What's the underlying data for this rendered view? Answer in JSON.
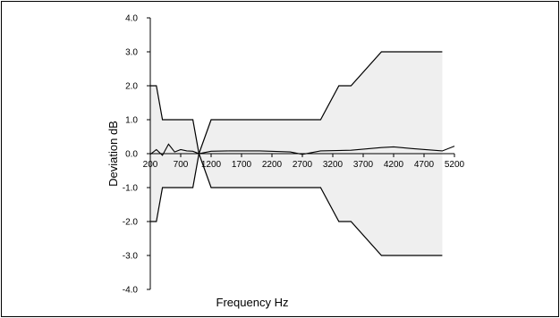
{
  "chart_data": {
    "type": "line",
    "title": "",
    "xlabel": "Frequency Hz",
    "ylabel": "Deviation dB",
    "xlim": [
      200,
      5200
    ],
    "ylim": [
      -4.0,
      4.0
    ],
    "x_ticks": [
      200,
      700,
      1200,
      1700,
      2200,
      2700,
      3200,
      3700,
      4200,
      4700,
      5200
    ],
    "x_tick_labels": [
      "200",
      "700",
      "1200",
      "1700",
      "2200",
      "2700",
      "3200",
      "3700",
      "4200",
      "4700",
      "5200"
    ],
    "y_ticks": [
      4.0,
      3.0,
      2.0,
      1.0,
      0.0,
      -1.0,
      -2.0,
      -3.0,
      -4.0
    ],
    "y_tick_labels": [
      "4.0",
      "3.0",
      "2.0",
      "1.0",
      "0.0",
      "-1.0",
      "-2.0",
      "-3.0",
      "-4.0"
    ],
    "grid": false,
    "colors": {
      "band_fill": "#efefef",
      "line": "#000000",
      "frame": "#000000"
    },
    "tolerance_band": {
      "upper": [
        [
          200,
          2.0
        ],
        [
          300,
          2.0
        ],
        [
          400,
          1.0
        ],
        [
          900,
          1.0
        ],
        [
          1000,
          0.0
        ],
        [
          1200,
          1.0
        ],
        [
          3000,
          1.0
        ],
        [
          3300,
          2.0
        ],
        [
          3500,
          2.0
        ],
        [
          4000,
          3.0
        ],
        [
          5000,
          3.0
        ]
      ],
      "lower": [
        [
          200,
          -2.0
        ],
        [
          300,
          -2.0
        ],
        [
          400,
          -1.0
        ],
        [
          900,
          -1.0
        ],
        [
          1000,
          0.0
        ],
        [
          1200,
          -1.0
        ],
        [
          3000,
          -1.0
        ],
        [
          3300,
          -2.0
        ],
        [
          3500,
          -2.0
        ],
        [
          4000,
          -3.0
        ],
        [
          5000,
          -3.0
        ]
      ]
    },
    "series": [
      {
        "x": [
          200,
          300,
          400,
          500,
          600,
          700,
          800,
          900,
          1000,
          1200,
          1500,
          2000,
          2500,
          2700,
          3000,
          3500,
          4000,
          4200,
          4500,
          5000,
          5200
        ],
        "values": [
          -0.02,
          0.12,
          -0.05,
          0.28,
          0.05,
          0.12,
          0.08,
          0.07,
          0.0,
          0.07,
          0.08,
          0.08,
          0.05,
          -0.02,
          0.08,
          0.1,
          0.18,
          0.2,
          0.15,
          0.08,
          0.22
        ]
      }
    ]
  }
}
